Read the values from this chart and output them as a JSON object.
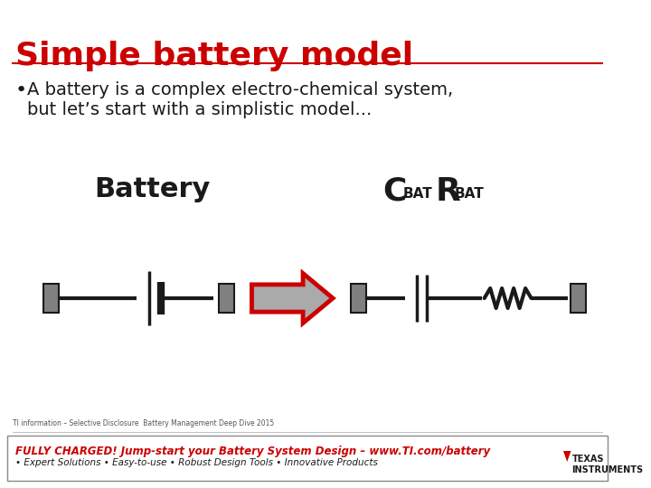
{
  "title": "Simple battery model",
  "title_color": "#cc0000",
  "bullet_text": "A battery is a complex electro-chemical system, but let’s start with a simplistic model...",
  "label_battery": "Battery",
  "label_model": "C",
  "label_bat1": "BAT",
  "label_r": "R",
  "label_bat2": "BAT",
  "footer_small": "TI information – Selective Disclosure  Battery Management Deep Dive 2015",
  "footer_main": "FULLY CHARGED! Jump-start your Battery System Design – www.TI.com/battery",
  "footer_sub": "• Expert Solutions • Easy-to-use • Robust Design Tools • Innovative Products",
  "bg_color": "#ffffff",
  "gray": "#808080",
  "dark": "#1a1a1a",
  "red": "#cc0000",
  "line_color": "#1a1a1a"
}
